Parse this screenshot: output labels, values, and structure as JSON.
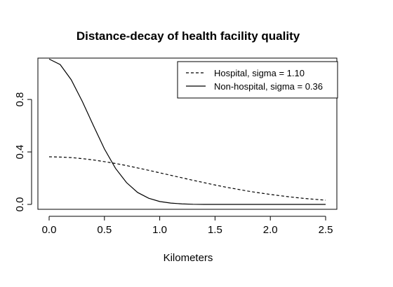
{
  "chart_data": {
    "type": "line",
    "title": "Distance-decay of health facility quality",
    "xlabel": "Kilometers",
    "ylabel": "",
    "xlim": [
      0,
      2.5
    ],
    "ylim": [
      0,
      1.11
    ],
    "xticks": [
      "0.0",
      "0.5",
      "1.0",
      "1.5",
      "2.0",
      "2.5"
    ],
    "yticks": [
      "0.0",
      "0.4",
      "0.8"
    ],
    "grid": false,
    "legend_position": "top-right",
    "x": [
      0,
      0.1,
      0.2,
      0.3,
      0.4,
      0.5,
      0.6,
      0.7,
      0.8,
      0.9,
      1.0,
      1.1,
      1.2,
      1.3,
      1.4,
      1.5,
      1.6,
      1.7,
      1.8,
      1.9,
      2.0,
      2.1,
      2.2,
      2.3,
      2.4,
      2.5
    ],
    "series": [
      {
        "name": "Hospital, sigma = 1.10",
        "line_style": "dashed",
        "color": "#000000",
        "values": [
          0.363,
          0.361,
          0.357,
          0.349,
          0.339,
          0.326,
          0.312,
          0.296,
          0.278,
          0.26,
          0.241,
          0.222,
          0.203,
          0.184,
          0.166,
          0.148,
          0.131,
          0.116,
          0.101,
          0.088,
          0.076,
          0.065,
          0.055,
          0.046,
          0.039,
          0.032
        ]
      },
      {
        "name": "Non-hospital, sigma = 0.36",
        "line_style": "solid",
        "color": "#000000",
        "values": [
          1.108,
          1.066,
          0.95,
          0.785,
          0.602,
          0.423,
          0.275,
          0.166,
          0.091,
          0.047,
          0.022,
          0.01,
          0.004,
          0.001,
          0.0,
          0.0,
          0.0,
          0.0,
          0.0,
          0.0,
          0.0,
          0.0,
          0.0,
          0.0,
          0.0,
          0.0
        ]
      }
    ]
  }
}
